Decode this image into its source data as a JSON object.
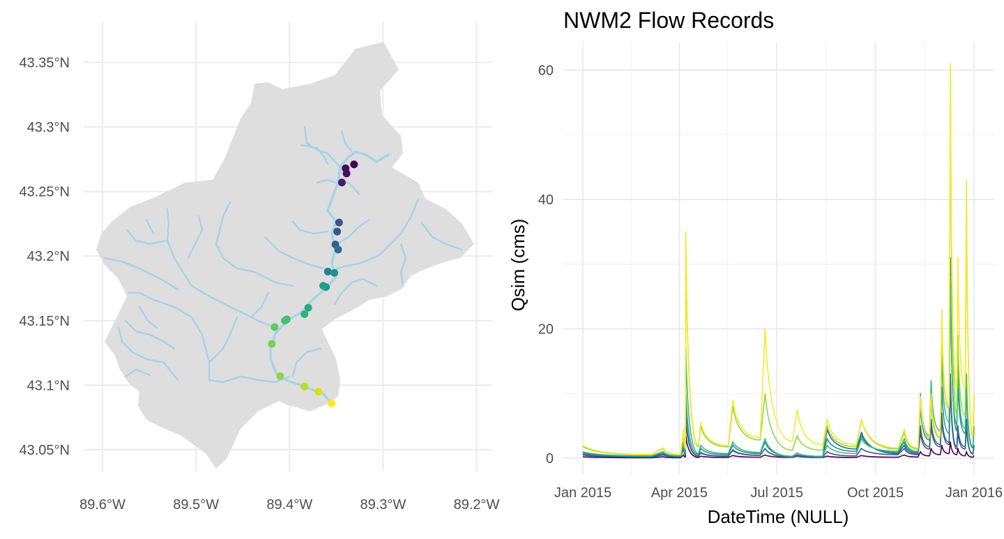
{
  "map": {
    "x_ticks": [
      "89.6°W",
      "89.5°W",
      "89.4°W",
      "89.3°W",
      "89.2°W"
    ],
    "y_ticks": [
      "43.05°N",
      "43.1°N",
      "43.15°N",
      "43.2°N",
      "43.25°N",
      "43.3°N",
      "43.35°N"
    ],
    "watershed_fill": "#dedede",
    "stream_color": "#a6d4e6",
    "gauge_points": [
      {
        "lon": -89.331,
        "lat": 43.271,
        "color": "#440154"
      },
      {
        "lon": -89.34,
        "lat": 43.268,
        "color": "#46085c"
      },
      {
        "lon": -89.339,
        "lat": 43.264,
        "color": "#471063"
      },
      {
        "lon": -89.344,
        "lat": 43.257,
        "color": "#481a6c"
      },
      {
        "lon": -89.347,
        "lat": 43.226,
        "color": "#3b528b"
      },
      {
        "lon": -89.349,
        "lat": 43.219,
        "color": "#39568c"
      },
      {
        "lon": -89.351,
        "lat": 43.209,
        "color": "#33638d"
      },
      {
        "lon": -89.348,
        "lat": 43.205,
        "color": "#2d708e"
      },
      {
        "lon": -89.359,
        "lat": 43.188,
        "color": "#26828e"
      },
      {
        "lon": -89.352,
        "lat": 43.187,
        "color": "#21918c"
      },
      {
        "lon": -89.361,
        "lat": 43.176,
        "color": "#1f988b"
      },
      {
        "lon": -89.364,
        "lat": 43.177,
        "color": "#1fa088"
      },
      {
        "lon": -89.38,
        "lat": 43.16,
        "color": "#25ab82"
      },
      {
        "lon": -89.384,
        "lat": 43.155,
        "color": "#2eb37c"
      },
      {
        "lon": -89.403,
        "lat": 43.151,
        "color": "#3bbb75"
      },
      {
        "lon": -89.405,
        "lat": 43.15,
        "color": "#4ac16d"
      },
      {
        "lon": -89.416,
        "lat": 43.145,
        "color": "#5ec962"
      },
      {
        "lon": -89.419,
        "lat": 43.132,
        "color": "#7ad151"
      },
      {
        "lon": -89.41,
        "lat": 43.107,
        "color": "#8fd744"
      },
      {
        "lon": -89.384,
        "lat": 43.099,
        "color": "#b5de2b"
      },
      {
        "lon": -89.369,
        "lat": 43.095,
        "color": "#d8e219"
      },
      {
        "lon": -89.355,
        "lat": 43.086,
        "color": "#fde725"
      }
    ]
  },
  "chart_data": {
    "type": "line",
    "title": "NWM2 Flow Records",
    "xlabel": "DateTime (NULL)",
    "ylabel": "Qsim (cms)",
    "x_ticks": [
      "Jan 2015",
      "Apr 2015",
      "Jul 2015",
      "Oct 2015",
      "Jan 2016"
    ],
    "y_ticks": [
      "0",
      "20",
      "40",
      "60"
    ],
    "xlim": [
      "2015-01-01",
      "2016-01-01"
    ],
    "ylim": [
      -2.5,
      64
    ],
    "grid": true,
    "legend": "none",
    "event_days": [
      0,
      75,
      94,
      96,
      110,
      140,
      170,
      200,
      228,
      260,
      300,
      315,
      325,
      335,
      343,
      350,
      358,
      365
    ],
    "series": [
      {
        "color": "#440154",
        "values": [
          0.2,
          0.2,
          0.5,
          3.5,
          0.3,
          0.4,
          0.5,
          0.3,
          0.3,
          0.4,
          0.5,
          1.0,
          1.5,
          2.0,
          2.5,
          1.5,
          1.0,
          0.4
        ]
      },
      {
        "color": "#3b528b",
        "values": [
          0.5,
          0.5,
          1.5,
          6.0,
          0.8,
          1.2,
          1.5,
          0.5,
          1.0,
          1.5,
          1.5,
          4.0,
          5.0,
          6.0,
          12.0,
          4.0,
          5.0,
          1.8
        ]
      },
      {
        "color": "#31688e",
        "values": [
          0.6,
          0.6,
          1.8,
          7.0,
          0.9,
          1.3,
          1.5,
          0.4,
          4.5,
          4.0,
          2.0,
          5.0,
          6.0,
          7.0,
          13.0,
          5.0,
          6.0,
          2.0
        ]
      },
      {
        "color": "#21918c",
        "values": [
          0.8,
          0.8,
          2.0,
          10.0,
          1.5,
          2.0,
          2.5,
          0.8,
          3.0,
          3.5,
          2.5,
          8.0,
          9.0,
          11.0,
          31.0,
          12.0,
          11.0,
          4.5
        ]
      },
      {
        "color": "#35b779",
        "values": [
          1.0,
          1.0,
          2.5,
          17.0,
          2.0,
          2.5,
          3.0,
          0.8,
          2.0,
          3.0,
          3.0,
          10.0,
          12.0,
          16.0,
          28.0,
          15.0,
          13.0,
          5.0
        ]
      },
      {
        "color": "#90d743",
        "values": [
          1.8,
          1.5,
          4.0,
          34.0,
          5.0,
          8.0,
          10.0,
          3.5,
          5.0,
          6.0,
          4.0,
          9.0,
          9.0,
          22.0,
          60.0,
          19.0,
          42.0,
          9.5
        ]
      },
      {
        "color": "#fde725",
        "values": [
          2.0,
          1.6,
          4.5,
          35.0,
          5.5,
          9.0,
          20.0,
          7.5,
          6.0,
          6.0,
          4.5,
          9.5,
          10.0,
          23.0,
          61.0,
          31.0,
          43.0,
          10.0
        ]
      }
    ]
  }
}
